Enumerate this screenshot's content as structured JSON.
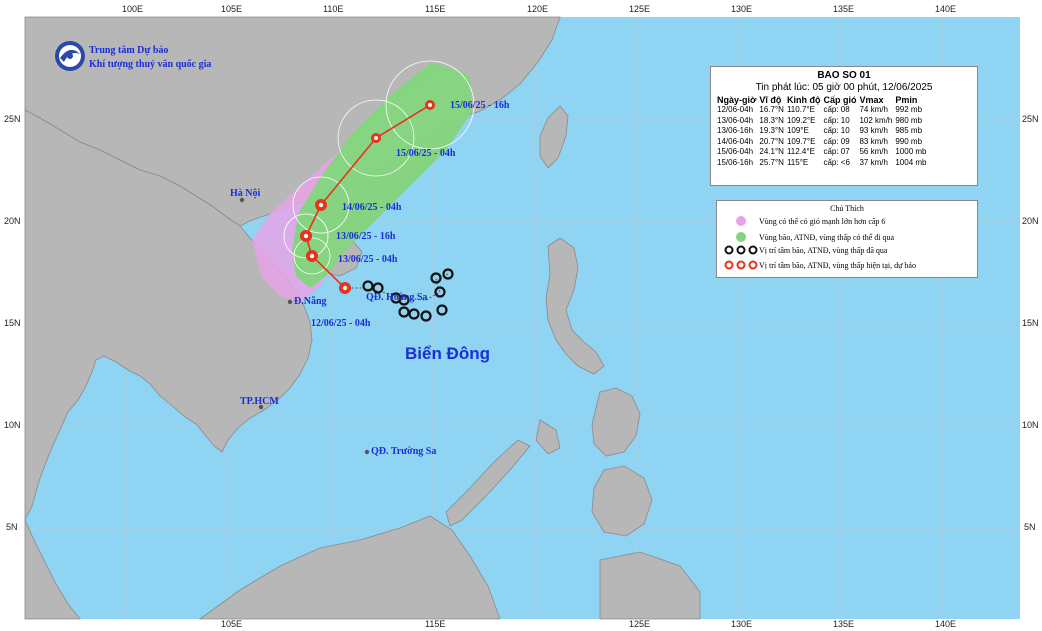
{
  "organization": {
    "line1": "Trung tâm Dự báo",
    "line2": "Khí tượng thuỷ văn quốc gia"
  },
  "ticks": {
    "lon": [
      "100E",
      "105E",
      "110E",
      "115E",
      "120E",
      "125E",
      "130E",
      "135E",
      "140E"
    ],
    "lat": [
      "25N",
      "20N",
      "15N",
      "10N",
      "5N"
    ]
  },
  "places": {
    "hanoi": "Hà Nội",
    "danang": "Đ.Nẵng",
    "hoang_sa": "QĐ. Hoàng Sa",
    "hcm": "TP.HCM",
    "truong_sa": "QĐ. Trường Sa",
    "sea": "Biển Đông"
  },
  "track_labels": [
    "15/06/25 - 16h",
    "15/06/25 - 04h",
    "14/06/25 - 04h",
    "13/06/25 - 16h",
    "13/06/25 - 04h",
    "12/06/25 - 04h"
  ],
  "info": {
    "title": "BAO SO 01",
    "issued": "Tin phát lúc: 05 giờ 00 phút, 12/06/2025",
    "headers": [
      "Ngày-giờ",
      "Vĩ độ",
      "Kinh độ",
      "Cấp gió",
      "Vmax",
      "Pmin"
    ],
    "rows": [
      [
        "12/06-04h",
        "16.7°N",
        "110.7°E",
        "cấp: 08",
        "74 km/h",
        "992 mb"
      ],
      [
        "13/06-04h",
        "18.3°N",
        "109.2°E",
        "cấp: 10",
        "102 km/h",
        "980 mb"
      ],
      [
        "13/06-16h",
        "19.3°N",
        "109°E",
        "cấp: 10",
        "93 km/h",
        "985 mb"
      ],
      [
        "14/06-04h",
        "20.7°N",
        "109.7°E",
        "cấp: 09",
        "83 km/h",
        "990 mb"
      ],
      [
        "15/06-04h",
        "24.1°N",
        "112.4°E",
        "cấp: 07",
        "56 km/h",
        "1000 mb"
      ],
      [
        "15/06-16h",
        "25.7°N",
        "115°E",
        "cấp: <6",
        "37 km/h",
        "1004 mb"
      ]
    ]
  },
  "legend": {
    "title": "Chú Thích",
    "items": [
      "Vùng có thể có gió mạnh lớn hơn cấp 6",
      "Vùng bão, ATNĐ, vùng thấp có thể đi qua",
      "Vị trí tâm bão, ATNĐ, vùng thấp đã qua",
      "Vị trí tâm bão, ATNĐ, vùng thấp hiện tại, dự báo"
    ]
  },
  "colors": {
    "sea": "#8fd4f2",
    "land": "#b7b7b7",
    "risk_zone": "#e8a3e8",
    "storm_cone": "#82d67c",
    "track": "#e8321a",
    "label_blue": "#1a2fd6"
  }
}
